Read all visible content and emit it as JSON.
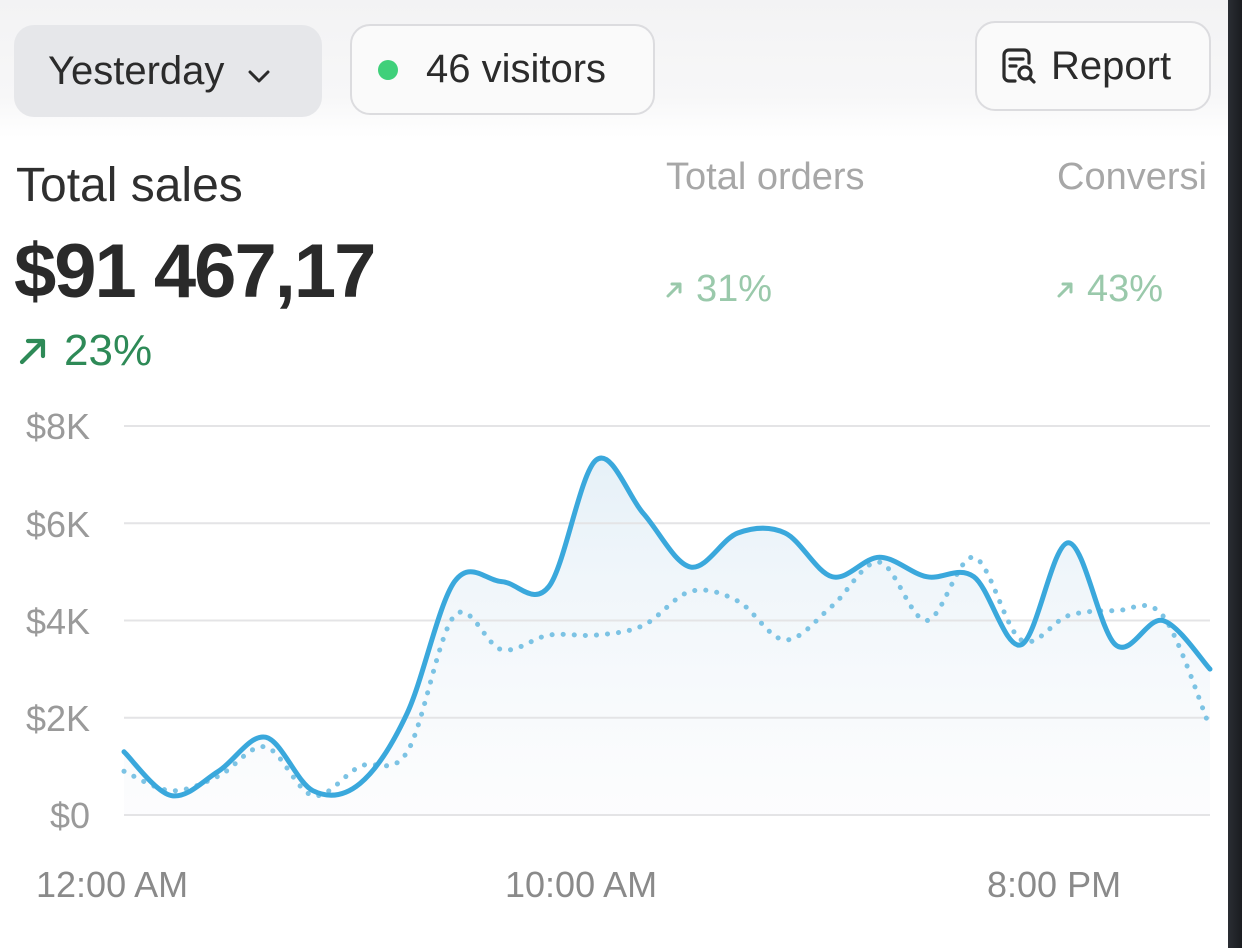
{
  "toolbar": {
    "period_label": "Yesterday",
    "visitors_label": "46 visitors",
    "report_label": "Report",
    "accent_live": "#3fd07a"
  },
  "metrics": {
    "total_sales": {
      "title": "Total sales",
      "value": "$91 467,17",
      "change": "23%",
      "direction": "up"
    },
    "total_orders": {
      "title": "Total orders",
      "change": "31%",
      "direction": "up"
    },
    "conversion": {
      "title": "Conversi",
      "change": "43%",
      "direction": "up"
    }
  },
  "icons": {
    "period_dropdown": "chevron-down-icon",
    "visitors_status": "live-dot-icon",
    "report": "report-search-icon",
    "trend": "arrow-up-right-icon"
  },
  "chart_data": {
    "type": "line",
    "xlabel": "",
    "ylabel": "",
    "x_tick_labels": [
      "12:00 AM",
      "10:00 AM",
      "8:00 PM"
    ],
    "y_tick_labels": [
      "$8K",
      "$6K",
      "$4K",
      "$2K",
      "$0"
    ],
    "ylim": [
      0,
      8000
    ],
    "grid": true,
    "x_hours": [
      0,
      1,
      2,
      3,
      4,
      5,
      6,
      7,
      8,
      9,
      10,
      11,
      12,
      13,
      14,
      15,
      16,
      17,
      18,
      19,
      20,
      21,
      22,
      23
    ],
    "series": [
      {
        "style": "solid",
        "color": "#3aa8dc",
        "area": true,
        "values": [
          1300,
          400,
          900,
          1600,
          500,
          650,
          2100,
          4800,
          4800,
          4700,
          7300,
          6200,
          5100,
          5800,
          5800,
          4900,
          5300,
          4900,
          4900,
          3500,
          5600,
          3500,
          4000,
          3000
        ]
      },
      {
        "style": "dotted",
        "color": "#7cc3e4",
        "area": false,
        "values": [
          900,
          500,
          800,
          1400,
          400,
          1000,
          1300,
          4100,
          3400,
          3700,
          3700,
          3900,
          4600,
          4400,
          3600,
          4300,
          5200,
          4000,
          5300,
          3600,
          4100,
          4200,
          4100,
          1800
        ]
      }
    ]
  }
}
